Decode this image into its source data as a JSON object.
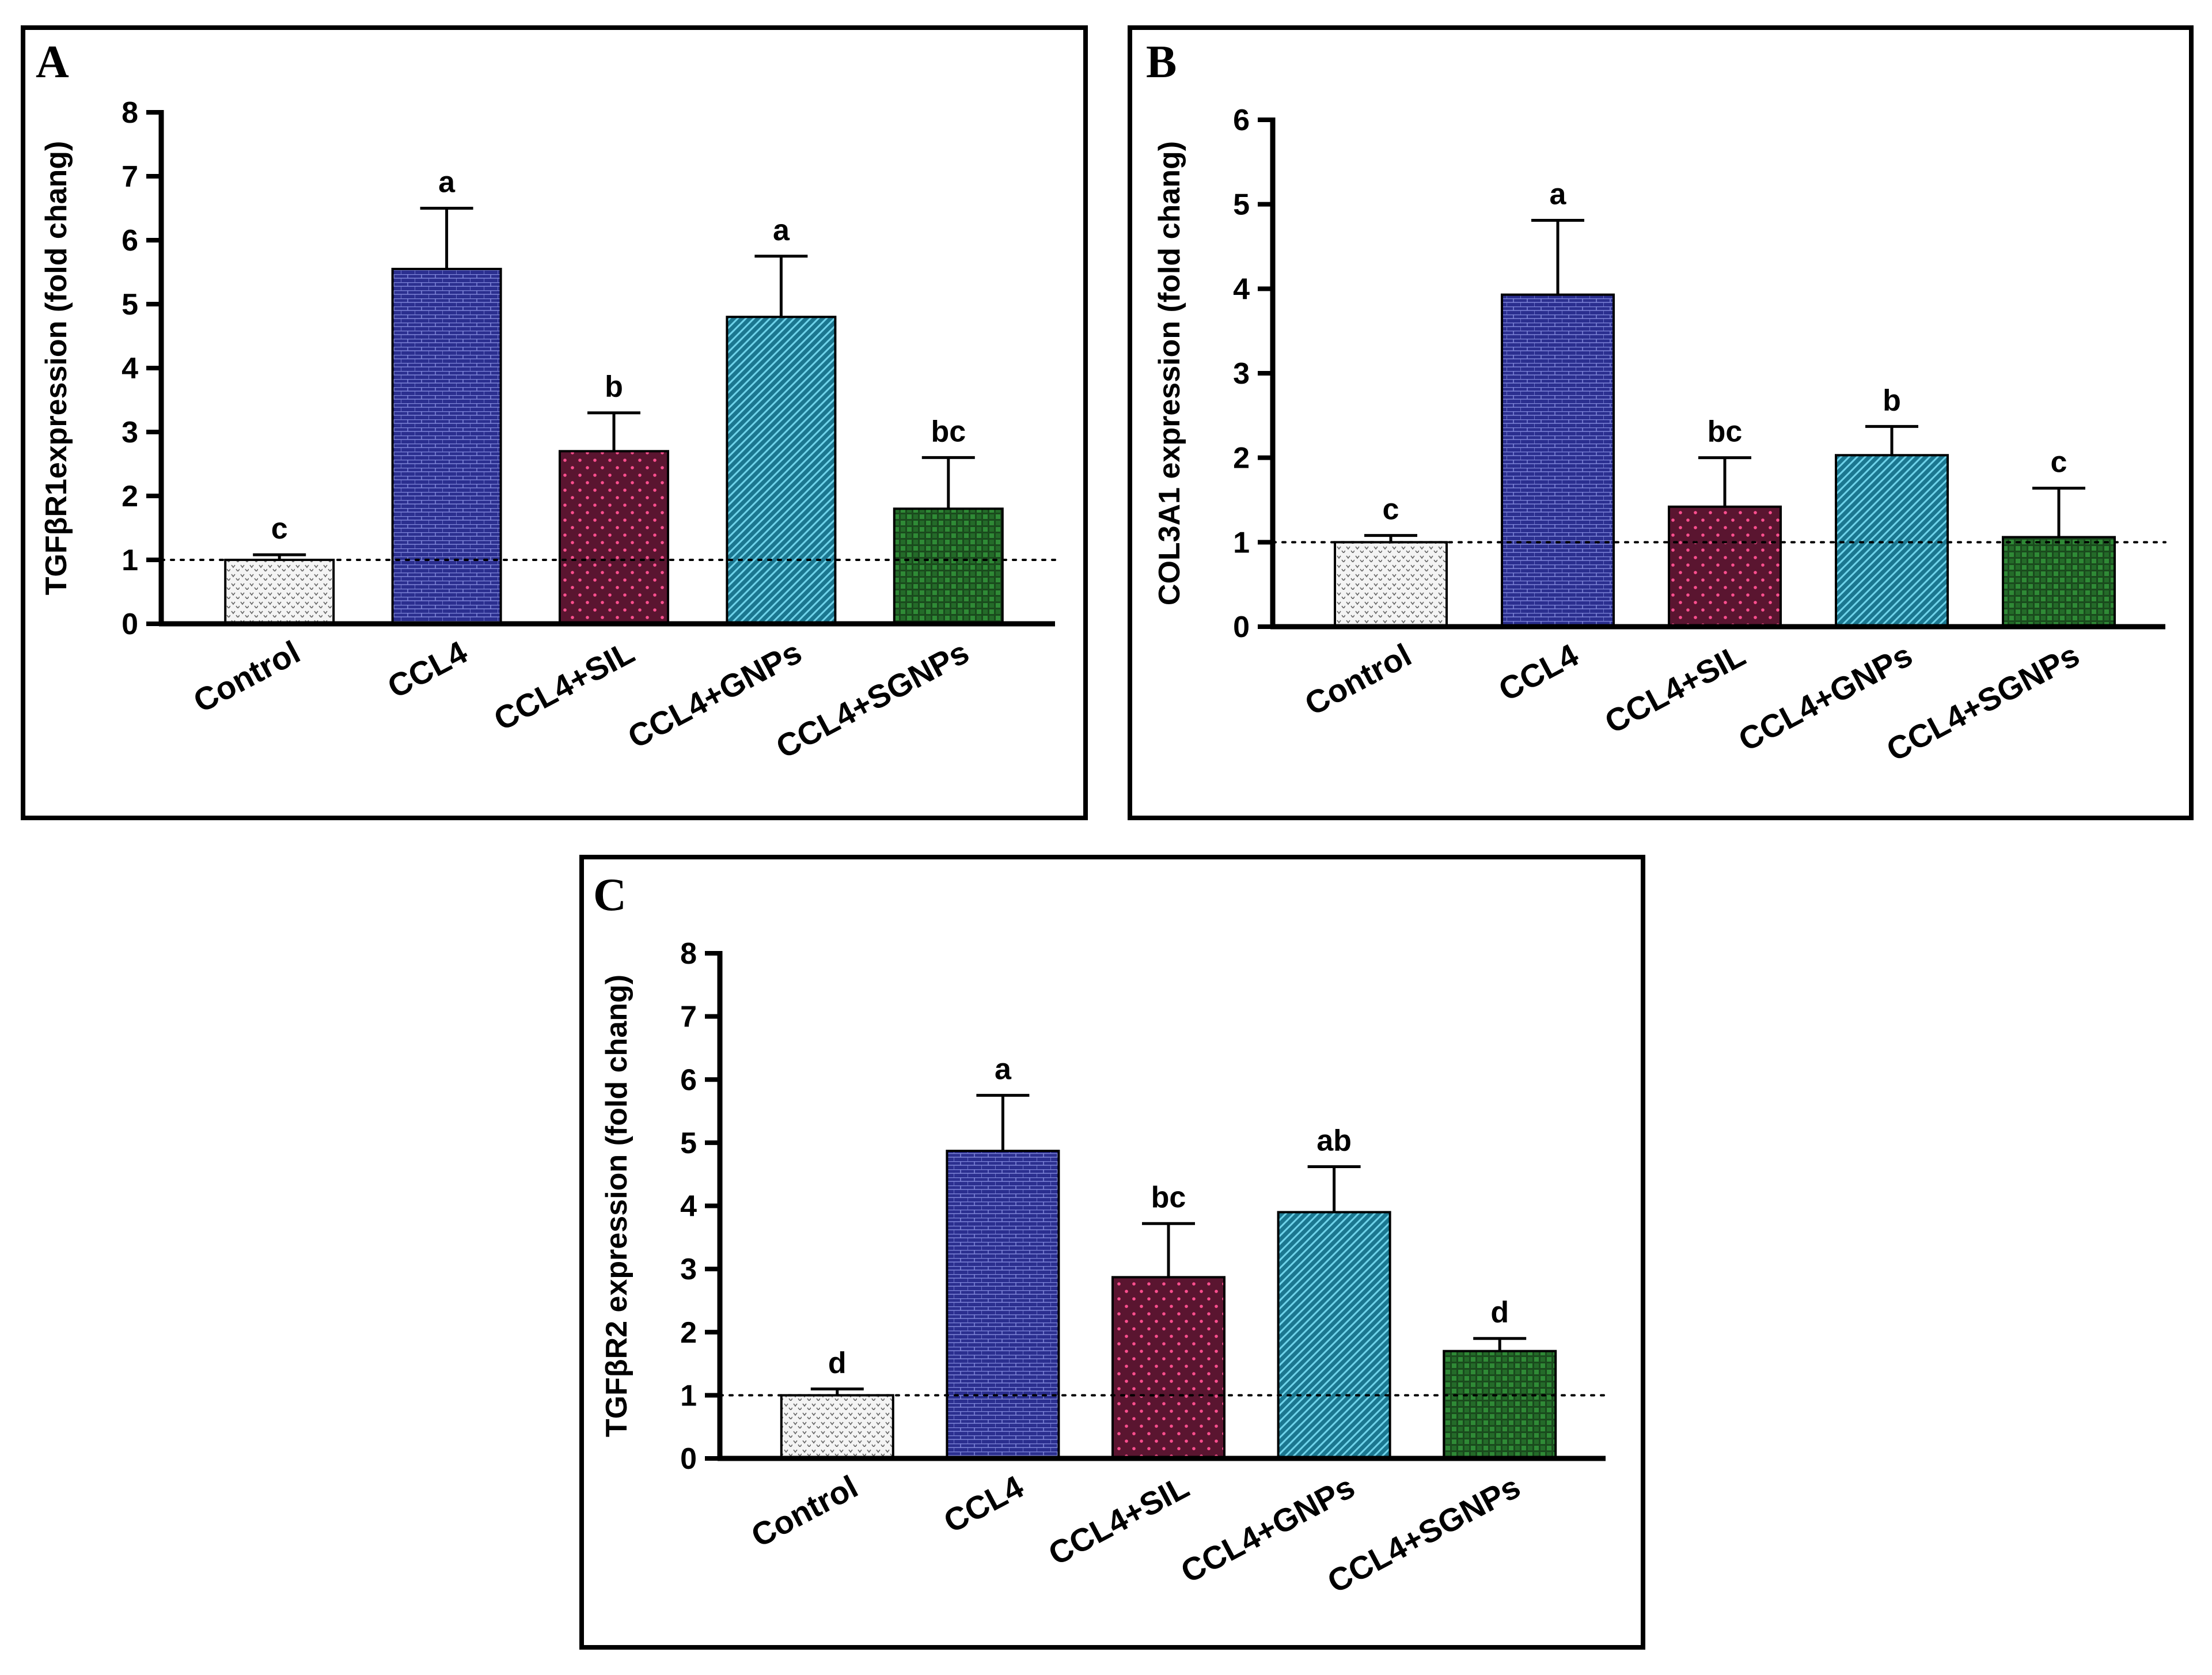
{
  "colors": {
    "control": "#d8d8d8",
    "ccl4": "#2b2f8f",
    "ccl4_sil": "#9e1f50",
    "ccl4_gnps": "#1f8fa8",
    "ccl4_sgnps": "#1f5e24",
    "frame": "#000000"
  },
  "chart_data": [
    {
      "panel": "A",
      "type": "bar",
      "ylabel": "TGFβR1expression (fold chang)",
      "categories": [
        "Control",
        "CCL4",
        "CCL4+SIL",
        "CCL4+GNPs",
        "CCL4+SGNPs"
      ],
      "values": [
        1.0,
        5.55,
        2.7,
        4.8,
        1.8
      ],
      "errors": [
        0.08,
        0.95,
        0.6,
        0.95,
        0.8
      ],
      "significance": [
        "c",
        "a",
        "b",
        "a",
        "bc"
      ],
      "ylim": [
        0,
        8
      ],
      "yticks": [
        "0",
        "1",
        "2",
        "3",
        "4",
        "5",
        "6",
        "7",
        "8"
      ],
      "reference_line": 1
    },
    {
      "panel": "B",
      "type": "bar",
      "ylabel": "COL3A1 expression (fold chang)",
      "categories": [
        "Control",
        "CCL4",
        "CCL4+SIL",
        "CCL4+GNPs",
        "CCL4+SGNPs"
      ],
      "values": [
        1.0,
        3.93,
        1.42,
        2.03,
        1.06
      ],
      "errors": [
        0.08,
        0.88,
        0.58,
        0.34,
        0.58
      ],
      "significance": [
        "c",
        "a",
        "bc",
        "b",
        "c"
      ],
      "ylim": [
        0,
        6
      ],
      "yticks": [
        "0",
        "1",
        "2",
        "3",
        "4",
        "5",
        "6"
      ],
      "reference_line": 1
    },
    {
      "panel": "C",
      "type": "bar",
      "ylabel": "TGFβR2 expression (fold chang)",
      "categories": [
        "Control",
        "CCL4",
        "CCL4+SIL",
        "CCL4+GNPs",
        "CCL4+SGNPs"
      ],
      "values": [
        1.0,
        4.87,
        2.87,
        3.9,
        1.7
      ],
      "errors": [
        0.1,
        0.88,
        0.85,
        0.72,
        0.2
      ],
      "significance": [
        "d",
        "a",
        "bc",
        "ab",
        "d"
      ],
      "ylim": [
        0,
        8
      ],
      "yticks": [
        "0",
        "1",
        "2",
        "3",
        "4",
        "5",
        "6",
        "7",
        "8"
      ],
      "reference_line": 1
    }
  ]
}
